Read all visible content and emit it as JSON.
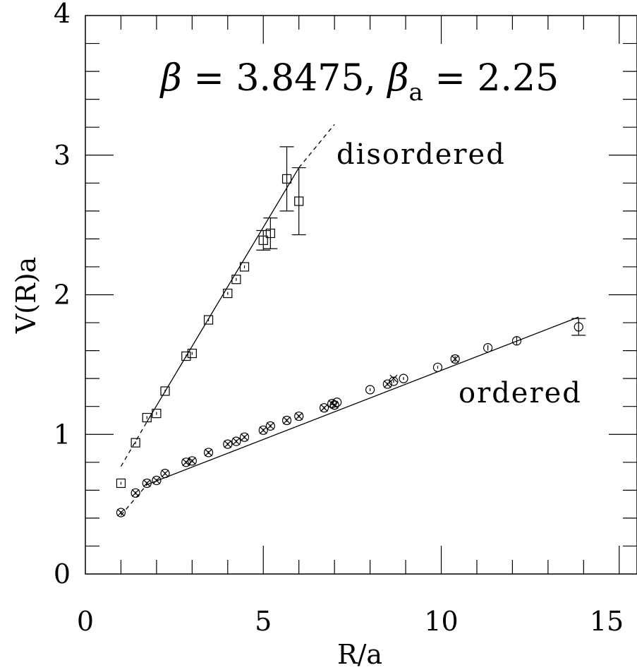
{
  "chart_data": {
    "type": "scatter",
    "title_parts": {
      "beta_symbol": "β",
      "beta_value": " = 3.8475, ",
      "beta_a_symbol": "β",
      "beta_a_subscript": "a",
      "beta_a_value": " = 2.25"
    },
    "xlabel": "R/a",
    "ylabel": "V(R)a",
    "xlim": [
      0,
      15.5
    ],
    "ylim": [
      0,
      4
    ],
    "x_ticks": [
      0,
      5,
      10,
      15
    ],
    "y_ticks": [
      0,
      1,
      2,
      3,
      4
    ],
    "annotations": [
      "disordered",
      "ordered"
    ],
    "series": [
      {
        "marker": "square",
        "points": [
          {
            "x": 1.0,
            "y": 0.65,
            "err": 0.01
          },
          {
            "x": 1.41,
            "y": 0.94,
            "err": 0.01
          },
          {
            "x": 1.73,
            "y": 1.12,
            "err": 0.01
          },
          {
            "x": 2.0,
            "y": 1.15,
            "err": 0.01
          },
          {
            "x": 2.24,
            "y": 1.31,
            "err": 0.01
          },
          {
            "x": 2.83,
            "y": 1.56,
            "err": 0.01
          },
          {
            "x": 3.0,
            "y": 1.58,
            "err": 0.01
          },
          {
            "x": 3.46,
            "y": 1.82,
            "err": 0.01
          },
          {
            "x": 4.0,
            "y": 2.01,
            "err": 0.01
          },
          {
            "x": 4.24,
            "y": 2.11,
            "err": 0.01
          },
          {
            "x": 4.47,
            "y": 2.2,
            "err": 0.01
          },
          {
            "x": 5.0,
            "y": 2.39,
            "err": 0.07
          },
          {
            "x": 5.2,
            "y": 2.44,
            "err": 0.11
          },
          {
            "x": 5.66,
            "y": 2.83,
            "err": 0.23
          },
          {
            "x": 6.0,
            "y": 2.67,
            "err": 0.24
          }
        ],
        "fit_dashed": [
          [
            1.0,
            0.77
          ],
          [
            1.73,
            1.09
          ]
        ],
        "fit_solid": [
          [
            1.73,
            1.09
          ],
          [
            6.0,
            2.91
          ]
        ],
        "fit_dashed_upper": [
          [
            6.0,
            2.91
          ],
          [
            7.0,
            3.22
          ]
        ]
      },
      {
        "marker": "circle",
        "points": [
          {
            "x": 1.0,
            "y": 0.44,
            "err": 0.01
          },
          {
            "x": 1.41,
            "y": 0.58,
            "err": 0.01
          },
          {
            "x": 1.73,
            "y": 0.65,
            "err": 0.01
          },
          {
            "x": 2.0,
            "y": 0.67,
            "err": 0.01
          },
          {
            "x": 2.24,
            "y": 0.72,
            "err": 0.01
          },
          {
            "x": 2.83,
            "y": 0.8,
            "err": 0.01
          },
          {
            "x": 3.0,
            "y": 0.81,
            "err": 0.01
          },
          {
            "x": 3.46,
            "y": 0.87,
            "err": 0.01
          },
          {
            "x": 4.0,
            "y": 0.93,
            "err": 0.01
          },
          {
            "x": 4.24,
            "y": 0.95,
            "err": 0.01
          },
          {
            "x": 4.47,
            "y": 0.98,
            "err": 0.01
          },
          {
            "x": 5.0,
            "y": 1.03,
            "err": 0.01
          },
          {
            "x": 5.2,
            "y": 1.06,
            "err": 0.01
          },
          {
            "x": 5.66,
            "y": 1.1,
            "err": 0.01
          },
          {
            "x": 6.0,
            "y": 1.13,
            "err": 0.01
          },
          {
            "x": 6.71,
            "y": 1.19,
            "err": 0.01
          },
          {
            "x": 6.93,
            "y": 1.22,
            "err": 0.01
          },
          {
            "x": 7.0,
            "y": 1.21,
            "err": 0.01
          },
          {
            "x": 7.07,
            "y": 1.23,
            "err": 0.01
          },
          {
            "x": 8.0,
            "y": 1.32,
            "err": 0.01
          },
          {
            "x": 8.49,
            "y": 1.36,
            "err": 0.01
          },
          {
            "x": 8.66,
            "y": 1.38,
            "err": 0.01
          },
          {
            "x": 8.94,
            "y": 1.4,
            "err": 0.01
          },
          {
            "x": 9.9,
            "y": 1.48,
            "err": 0.01
          },
          {
            "x": 10.39,
            "y": 1.54,
            "err": 0.02
          },
          {
            "x": 11.31,
            "y": 1.62,
            "err": 0.02
          },
          {
            "x": 12.12,
            "y": 1.67,
            "err": 0.03
          },
          {
            "x": 13.86,
            "y": 1.77,
            "err": 0.06
          }
        ],
        "fit_dashed": [
          [
            1.0,
            0.42
          ],
          [
            1.73,
            0.64
          ]
        ],
        "fit_solid": [
          [
            1.73,
            0.64
          ],
          [
            13.86,
            1.84
          ]
        ]
      },
      {
        "marker": "cross",
        "points": [
          {
            "x": 1.0,
            "y": 0.44
          },
          {
            "x": 1.41,
            "y": 0.58
          },
          {
            "x": 1.73,
            "y": 0.65
          },
          {
            "x": 2.0,
            "y": 0.67
          },
          {
            "x": 2.24,
            "y": 0.72
          },
          {
            "x": 2.83,
            "y": 0.8
          },
          {
            "x": 3.0,
            "y": 0.81
          },
          {
            "x": 3.46,
            "y": 0.87
          },
          {
            "x": 4.0,
            "y": 0.93
          },
          {
            "x": 4.24,
            "y": 0.95
          },
          {
            "x": 4.47,
            "y": 0.98
          },
          {
            "x": 5.0,
            "y": 1.03
          },
          {
            "x": 5.2,
            "y": 1.06
          },
          {
            "x": 5.66,
            "y": 1.1
          },
          {
            "x": 6.0,
            "y": 1.13
          },
          {
            "x": 6.71,
            "y": 1.19
          },
          {
            "x": 6.93,
            "y": 1.22
          },
          {
            "x": 7.0,
            "y": 1.21
          },
          {
            "x": 8.49,
            "y": 1.36
          },
          {
            "x": 8.66,
            "y": 1.4
          },
          {
            "x": 10.39,
            "y": 1.54
          }
        ]
      }
    ]
  }
}
